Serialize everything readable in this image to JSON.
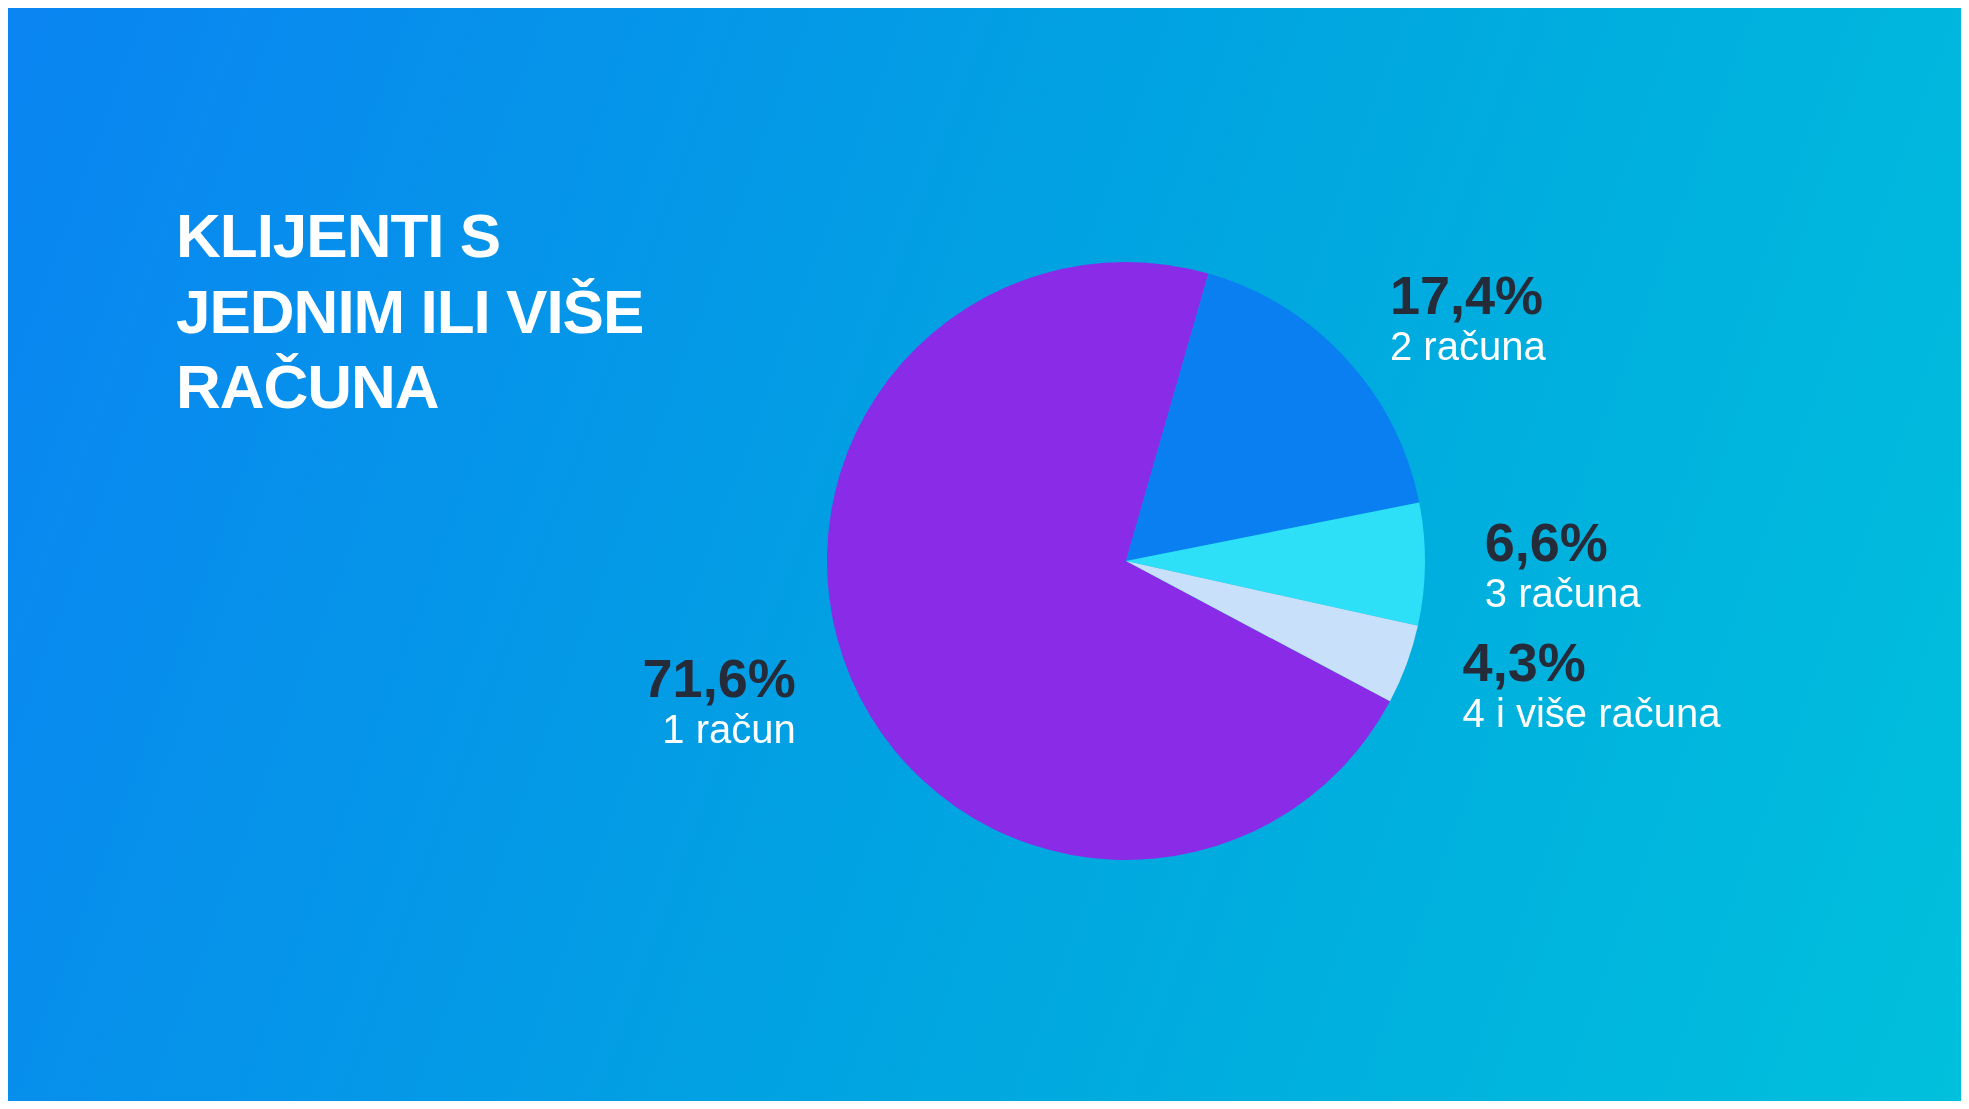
{
  "chart_data": {
    "type": "pie",
    "title": "KLIJENTI S JEDNIM ILI VIŠE RAČUNA",
    "categories": [
      "1 račun",
      "2 računa",
      "3 računa",
      "4 i više računa"
    ],
    "values": [
      71.6,
      17.4,
      6.6,
      4.3
    ],
    "value_labels": [
      "71,6%",
      "17,4%",
      "6,6%",
      "4,3%"
    ],
    "colors": [
      "#8a2be8",
      "#0a7ff2",
      "#2ee0f7",
      "#c8e0fa"
    ],
    "legend": false
  }
}
